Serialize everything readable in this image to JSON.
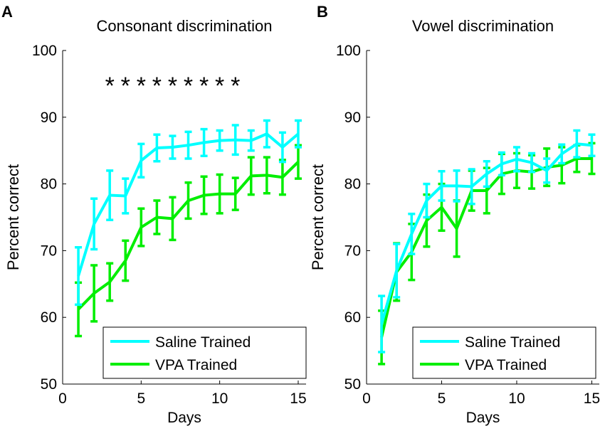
{
  "chart_data": [
    {
      "type": "line",
      "panel_label": "A",
      "title": "Consonant discrimination",
      "xlabel": "Days",
      "ylabel": "Percent correct",
      "xlim": [
        0,
        15.5
      ],
      "ylim": [
        50,
        100
      ],
      "xticks": [
        0,
        5,
        10,
        15
      ],
      "yticks": [
        50,
        60,
        70,
        80,
        90,
        100
      ],
      "grid": false,
      "legend_position": "bottom-right",
      "x": [
        1,
        2,
        3,
        4,
        5,
        6,
        7,
        8,
        9,
        10,
        11,
        12,
        13,
        14,
        15
      ],
      "series": [
        {
          "name": "Saline Trained",
          "color": "#00ffff",
          "values": [
            66.2,
            74.0,
            78.3,
            78.2,
            83.5,
            85.4,
            85.5,
            85.8,
            86.2,
            86.5,
            86.6,
            86.5,
            87.5,
            85.5,
            87.5
          ],
          "errors": [
            4.3,
            3.8,
            3.7,
            2.6,
            2.5,
            2.0,
            1.7,
            2.0,
            2.0,
            1.5,
            2.2,
            1.5,
            2.0,
            2.2,
            2.0
          ]
        },
        {
          "name": "VPA Trained",
          "color": "#00ee00",
          "values": [
            61.2,
            63.6,
            65.3,
            68.5,
            73.5,
            75.0,
            74.8,
            77.5,
            78.3,
            78.5,
            78.5,
            81.2,
            81.3,
            81.0,
            83.3
          ],
          "errors": [
            4.0,
            4.2,
            2.8,
            3.0,
            2.8,
            2.5,
            3.2,
            2.7,
            2.8,
            2.9,
            2.4,
            2.8,
            2.7,
            2.6,
            2.5
          ]
        }
      ],
      "significance": {
        "marker": "*",
        "y": 95,
        "days": [
          3,
          4,
          5,
          6,
          7,
          8,
          9,
          10,
          11
        ]
      }
    },
    {
      "type": "line",
      "panel_label": "B",
      "title": "Vowel discrimination",
      "xlabel": "Days",
      "ylabel": "Percent correct",
      "xlim": [
        0,
        15.5
      ],
      "ylim": [
        50,
        100
      ],
      "xticks": [
        0,
        5,
        10,
        15
      ],
      "yticks": [
        50,
        60,
        70,
        80,
        90,
        100
      ],
      "grid": false,
      "legend_position": "bottom-right",
      "x": [
        1,
        2,
        3,
        4,
        5,
        6,
        7,
        8,
        9,
        10,
        11,
        12,
        13,
        14,
        15
      ],
      "series": [
        {
          "name": "Saline Trained",
          "color": "#00ffff",
          "values": [
            59.0,
            67.0,
            72.5,
            77.5,
            79.7,
            79.7,
            79.6,
            81.5,
            83.0,
            83.7,
            83.2,
            82.0,
            84.5,
            86.0,
            85.8
          ],
          "errors": [
            4.2,
            4.0,
            3.0,
            2.5,
            2.2,
            2.3,
            2.6,
            1.9,
            1.7,
            1.8,
            1.4,
            1.8,
            1.4,
            2.0,
            1.6
          ]
        },
        {
          "name": "VPA Trained",
          "color": "#00ee00",
          "values": [
            57.0,
            66.8,
            69.8,
            74.5,
            76.5,
            73.3,
            79.0,
            79.0,
            81.5,
            82.0,
            81.8,
            82.5,
            82.8,
            83.8,
            83.8
          ],
          "errors": [
            4.0,
            4.3,
            4.2,
            3.9,
            3.5,
            4.2,
            3.0,
            3.4,
            3.0,
            2.6,
            2.5,
            2.8,
            2.7,
            2.0,
            2.3
          ]
        }
      ]
    }
  ]
}
